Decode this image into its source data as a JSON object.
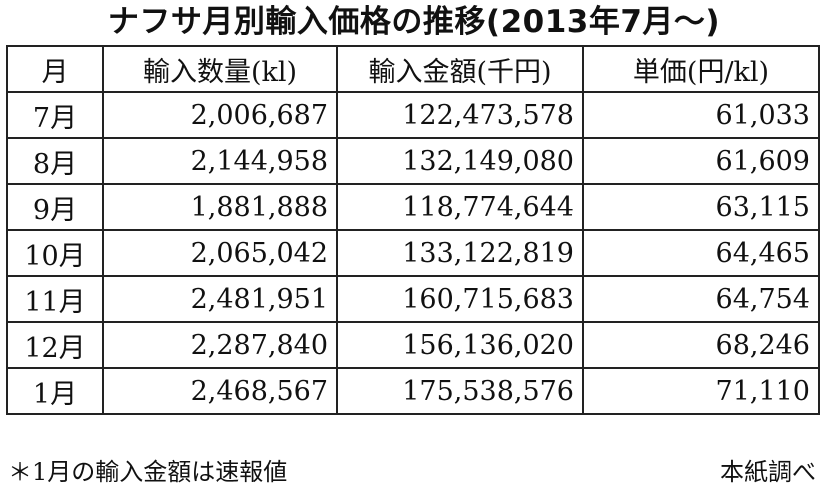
{
  "title": "ナフサ月別輸入価格の推移(2013年7月〜)",
  "table": {
    "headers": [
      "月",
      "輸入数量(kl)",
      "輸入金額(千円)",
      "単価(円/kl)"
    ],
    "rows": [
      {
        "month": "7月",
        "volume": "2,006,687",
        "amount": "122,473,578",
        "unit_price": "61,033"
      },
      {
        "month": "8月",
        "volume": "2,144,958",
        "amount": "132,149,080",
        "unit_price": "61,609"
      },
      {
        "month": "9月",
        "volume": "1,881,888",
        "amount": "118,774,644",
        "unit_price": "63,115"
      },
      {
        "month": "10月",
        "volume": "2,065,042",
        "amount": "133,122,819",
        "unit_price": "64,465"
      },
      {
        "month": "11月",
        "volume": "2,481,951",
        "amount": "160,715,683",
        "unit_price": "64,754"
      },
      {
        "month": "12月",
        "volume": "2,287,840",
        "amount": "156,136,020",
        "unit_price": "68,246"
      },
      {
        "month": "1月",
        "volume": "2,468,567",
        "amount": "175,538,576",
        "unit_price": "71,110"
      }
    ]
  },
  "footer": {
    "note": "＊1月の輸入金額は速報値",
    "source": "本紙調べ"
  }
}
